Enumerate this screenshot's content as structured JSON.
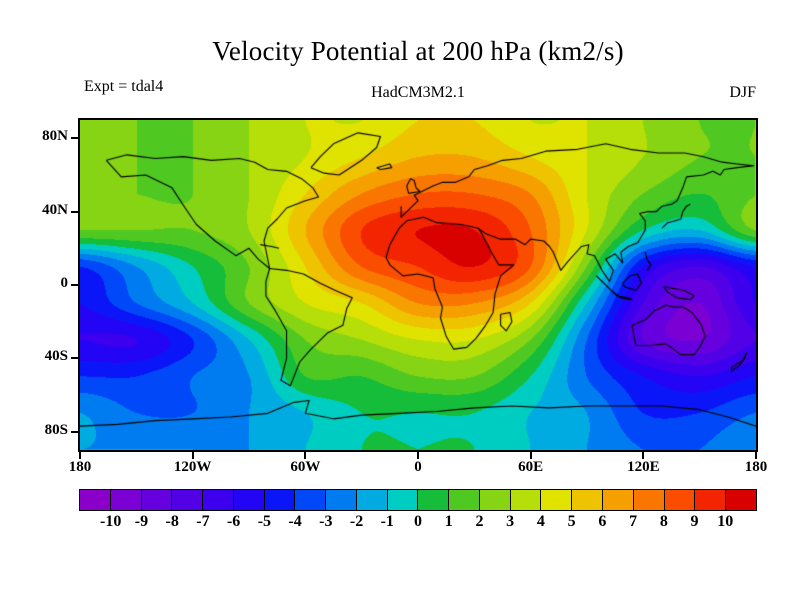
{
  "title": "Velocity Potential at 200 hPa (km2/s)",
  "subtitle_left": "Expt = tdal4",
  "subtitle_center": "HadCM3M2.1",
  "subtitle_right": "DJF",
  "colorbar": {
    "tick_labels": [
      "-10",
      "-9",
      "-8",
      "-7",
      "-6",
      "-5",
      "-4",
      "-3",
      "-2",
      "-1",
      "0",
      "1",
      "2",
      "3",
      "4",
      "5",
      "6",
      "7",
      "8",
      "9",
      "10"
    ],
    "colors": [
      "#8b00c8",
      "#7a00d4",
      "#6600de",
      "#5200e6",
      "#3c00ee",
      "#2404f4",
      "#0b16f8",
      "#0048f8",
      "#007cf0",
      "#00abe1",
      "#00cdc2",
      "#16bd3a",
      "#4fc922",
      "#86d414",
      "#b6de08",
      "#e0e200",
      "#eec300",
      "#f59f00",
      "#f97700",
      "#fa4d00",
      "#f32400",
      "#d90000"
    ]
  },
  "chart_data": {
    "type": "heatmap",
    "subtype": "filled-contour-map",
    "title": "Velocity Potential at 200 hPa (km2/s)",
    "model": "HadCM3M2.1",
    "experiment": "tdal4",
    "season": "DJF",
    "units": "km2/s",
    "contour_interval": 1,
    "level_min": -10,
    "level_max": 10,
    "lat_ticks": [
      {
        "label": "80N",
        "lat": 80
      },
      {
        "label": "40N",
        "lat": 40
      },
      {
        "label": "0",
        "lat": 0
      },
      {
        "label": "40S",
        "lat": -40
      },
      {
        "label": "80S",
        "lat": -80
      }
    ],
    "lon_ticks": [
      {
        "label": "180",
        "lon": -180
      },
      {
        "label": "120W",
        "lon": -120
      },
      {
        "label": "60W",
        "lon": -60
      },
      {
        "label": "0",
        "lon": 0
      },
      {
        "label": "60E",
        "lon": 60
      },
      {
        "label": "120E",
        "lon": 120
      },
      {
        "label": "180",
        "lon": 180
      }
    ],
    "lon": [
      -180,
      -150,
      -120,
      -90,
      -60,
      -30,
      0,
      30,
      60,
      90,
      120,
      150,
      180
    ],
    "lat": [
      90,
      70,
      50,
      30,
      10,
      -10,
      -30,
      -50,
      -70,
      -90
    ],
    "values": [
      [
        2,
        2,
        2,
        3,
        4,
        4,
        5,
        5,
        4,
        4,
        3,
        2,
        2
      ],
      [
        2,
        2,
        2,
        3,
        4,
        5,
        6,
        6,
        5,
        4,
        3,
        2,
        2
      ],
      [
        2,
        2,
        2,
        3,
        5,
        7,
        8,
        8,
        7,
        4,
        2,
        1,
        2
      ],
      [
        2,
        2,
        2,
        3,
        6,
        9,
        10,
        10,
        8,
        4,
        0,
        -1,
        2
      ],
      [
        -4,
        -2,
        0,
        2,
        5,
        8,
        9,
        10,
        8,
        2,
        -5,
        -7,
        -5
      ],
      [
        -5,
        -3,
        -1,
        2,
        4,
        5,
        7,
        7,
        5,
        -1,
        -7,
        -9,
        -6
      ],
      [
        -6,
        -6,
        -4,
        -1,
        2,
        3,
        4,
        4,
        2,
        -3,
        -8,
        -9,
        -7
      ],
      [
        -4,
        -4,
        -3,
        -2,
        1,
        1,
        2,
        2,
        0,
        -3,
        -5,
        -6,
        -5
      ],
      [
        -2,
        -3,
        -3,
        -2,
        -1,
        0,
        0,
        0,
        -1,
        -2,
        -4,
        -4,
        -3
      ],
      [
        -2,
        -2,
        -2,
        -2,
        -1,
        0,
        0,
        0,
        -1,
        -2,
        -3,
        -3,
        -2
      ]
    ]
  },
  "coastlines": [
    [
      [
        -166,
        68
      ],
      [
        -158,
        59
      ],
      [
        -145,
        60
      ],
      [
        -131,
        53
      ],
      [
        -124,
        42
      ],
      [
        -118,
        33
      ],
      [
        -108,
        24
      ],
      [
        -97,
        16
      ],
      [
        -90,
        20
      ],
      [
        -85,
        14
      ],
      [
        -79,
        9
      ],
      [
        -82,
        24
      ],
      [
        -80,
        31
      ],
      [
        -75,
        36
      ],
      [
        -70,
        42
      ],
      [
        -60,
        46
      ],
      [
        -53,
        48
      ],
      [
        -56,
        53
      ],
      [
        -62,
        58
      ],
      [
        -70,
        62
      ],
      [
        -80,
        63
      ],
      [
        -87,
        67
      ],
      [
        -95,
        69
      ],
      [
        -110,
        68
      ],
      [
        -125,
        70
      ],
      [
        -140,
        69
      ],
      [
        -155,
        71
      ],
      [
        -166,
        68
      ]
    ],
    [
      [
        -79,
        9
      ],
      [
        -81,
        2
      ],
      [
        -81,
        -6
      ],
      [
        -76,
        -14
      ],
      [
        -70,
        -25
      ],
      [
        -70,
        -40
      ],
      [
        -73,
        -52
      ],
      [
        -68,
        -55
      ],
      [
        -63,
        -42
      ],
      [
        -57,
        -35
      ],
      [
        -48,
        -26
      ],
      [
        -40,
        -22
      ],
      [
        -38,
        -13
      ],
      [
        -35,
        -7
      ],
      [
        -44,
        -3
      ],
      [
        -52,
        1
      ],
      [
        -61,
        6
      ],
      [
        -70,
        8
      ],
      [
        -79,
        9
      ]
    ],
    [
      [
        -57,
        64
      ],
      [
        -52,
        70
      ],
      [
        -45,
        77
      ],
      [
        -32,
        83
      ],
      [
        -20,
        81
      ],
      [
        -22,
        75
      ],
      [
        -30,
        68
      ],
      [
        -42,
        60
      ],
      [
        -50,
        61
      ],
      [
        -57,
        64
      ]
    ],
    [
      [
        -6,
        35
      ],
      [
        -10,
        31
      ],
      [
        -15,
        22
      ],
      [
        -17,
        15
      ],
      [
        -15,
        11
      ],
      [
        -8,
        5
      ],
      [
        0,
        6
      ],
      [
        8,
        4
      ],
      [
        9,
        -2
      ],
      [
        13,
        -12
      ],
      [
        12,
        -18
      ],
      [
        15,
        -28
      ],
      [
        19,
        -35
      ],
      [
        26,
        -34
      ],
      [
        31,
        -29
      ],
      [
        36,
        -22
      ],
      [
        40,
        -15
      ],
      [
        41,
        -5
      ],
      [
        44,
        5
      ],
      [
        51,
        11
      ],
      [
        43,
        11
      ],
      [
        39,
        18
      ],
      [
        34,
        28
      ],
      [
        32,
        31
      ],
      [
        23,
        33
      ],
      [
        10,
        34
      ],
      [
        3,
        37
      ],
      [
        -6,
        35
      ]
    ],
    [
      [
        -9,
        43
      ],
      [
        -9,
        37
      ],
      [
        -2,
        44
      ],
      [
        0,
        46
      ],
      [
        -2,
        49
      ],
      [
        2,
        51
      ],
      [
        8,
        54
      ],
      [
        13,
        56
      ],
      [
        20,
        56
      ],
      [
        27,
        59
      ],
      [
        30,
        63
      ],
      [
        37,
        65
      ],
      [
        45,
        68
      ],
      [
        55,
        69
      ],
      [
        68,
        73
      ],
      [
        85,
        74
      ],
      [
        100,
        77
      ],
      [
        113,
        74
      ],
      [
        128,
        72
      ],
      [
        142,
        72
      ],
      [
        152,
        70
      ],
      [
        162,
        67
      ],
      [
        170,
        66
      ],
      [
        179,
        65
      ]
    ],
    [
      [
        32,
        31
      ],
      [
        36,
        28
      ],
      [
        44,
        25
      ],
      [
        52,
        25
      ],
      [
        57,
        22
      ],
      [
        60,
        25
      ],
      [
        67,
        24
      ],
      [
        70,
        21
      ],
      [
        72,
        18
      ],
      [
        76,
        8
      ],
      [
        80,
        13
      ],
      [
        87,
        21
      ],
      [
        91,
        22
      ],
      [
        90,
        17
      ],
      [
        94,
        16
      ],
      [
        98,
        8
      ],
      [
        102,
        2
      ],
      [
        104,
        8
      ],
      [
        100,
        14
      ],
      [
        105,
        17
      ],
      [
        109,
        12
      ],
      [
        108,
        18
      ],
      [
        112,
        21
      ],
      [
        117,
        23
      ],
      [
        121,
        30
      ],
      [
        121,
        35
      ],
      [
        118,
        39
      ],
      [
        122,
        40
      ],
      [
        127,
        40
      ],
      [
        130,
        43
      ],
      [
        135,
        44
      ],
      [
        138,
        46
      ],
      [
        141,
        53
      ],
      [
        143,
        59
      ],
      [
        152,
        60
      ],
      [
        157,
        62
      ],
      [
        161,
        60
      ],
      [
        163,
        63
      ],
      [
        170,
        64
      ],
      [
        178,
        65
      ]
    ],
    [
      [
        114,
        -22
      ],
      [
        116,
        -33
      ],
      [
        124,
        -33
      ],
      [
        132,
        -32
      ],
      [
        136,
        -35
      ],
      [
        140,
        -38
      ],
      [
        147,
        -38
      ],
      [
        150,
        -34
      ],
      [
        153,
        -28
      ],
      [
        151,
        -22
      ],
      [
        146,
        -15
      ],
      [
        141,
        -12
      ],
      [
        136,
        -12
      ],
      [
        132,
        -11
      ],
      [
        126,
        -14
      ],
      [
        121,
        -19
      ],
      [
        114,
        -22
      ]
    ],
    [
      [
        -180,
        -77
      ],
      [
        -160,
        -76
      ],
      [
        -140,
        -74
      ],
      [
        -120,
        -73
      ],
      [
        -100,
        -72
      ],
      [
        -80,
        -70
      ],
      [
        -66,
        -64
      ],
      [
        -58,
        -63
      ],
      [
        -60,
        -70
      ],
      [
        -45,
        -73
      ],
      [
        -30,
        -71
      ],
      [
        -10,
        -70
      ],
      [
        10,
        -69
      ],
      [
        30,
        -67
      ],
      [
        50,
        -66
      ],
      [
        70,
        -67
      ],
      [
        90,
        -66
      ],
      [
        110,
        -66
      ],
      [
        130,
        -66
      ],
      [
        150,
        -68
      ],
      [
        165,
        -72
      ],
      [
        180,
        -77
      ]
    ],
    [
      [
        109,
        1
      ],
      [
        113,
        5
      ],
      [
        117,
        6
      ],
      [
        119,
        1
      ],
      [
        116,
        -3
      ],
      [
        110,
        -1
      ],
      [
        109,
        1
      ]
    ],
    [
      [
        131,
        -1
      ],
      [
        137,
        -2
      ],
      [
        142,
        -3
      ],
      [
        147,
        -6
      ],
      [
        145,
        -8
      ],
      [
        138,
        -7
      ],
      [
        133,
        -4
      ],
      [
        131,
        -1
      ]
    ],
    [
      [
        95,
        5
      ],
      [
        100,
        0
      ],
      [
        104,
        -4
      ],
      [
        106,
        -6
      ],
      [
        112,
        -7
      ],
      [
        114,
        -8
      ],
      [
        108,
        -7
      ],
      [
        103,
        -3
      ],
      [
        97,
        3
      ],
      [
        95,
        5
      ]
    ],
    [
      [
        44,
        -16
      ],
      [
        49,
        -15
      ],
      [
        50,
        -20
      ],
      [
        47,
        -25
      ],
      [
        44,
        -22
      ],
      [
        44,
        -16
      ]
    ],
    [
      [
        -5,
        50
      ],
      [
        -6,
        54
      ],
      [
        -4,
        58
      ],
      [
        -2,
        57
      ],
      [
        -1,
        53
      ],
      [
        1,
        51
      ],
      [
        -5,
        50
      ]
    ],
    [
      [
        130,
        31
      ],
      [
        133,
        34
      ],
      [
        137,
        35
      ],
      [
        140,
        36
      ],
      [
        141,
        40
      ],
      [
        143,
        43
      ],
      [
        145,
        44
      ]
    ],
    [
      [
        167,
        -45
      ],
      [
        170,
        -43
      ],
      [
        173,
        -41
      ],
      [
        175,
        -37
      ],
      [
        174,
        -40
      ],
      [
        171,
        -44
      ],
      [
        167,
        -47
      ],
      [
        167,
        -45
      ]
    ],
    [
      [
        -22,
        64
      ],
      [
        -15,
        66
      ],
      [
        -14,
        64
      ],
      [
        -20,
        63
      ],
      [
        -22,
        64
      ]
    ],
    [
      [
        -84,
        22
      ],
      [
        -78,
        21
      ],
      [
        -74,
        20
      ]
    ],
    [
      [
        121,
        18
      ],
      [
        122,
        14
      ],
      [
        124,
        11
      ],
      [
        122,
        8
      ]
    ]
  ]
}
